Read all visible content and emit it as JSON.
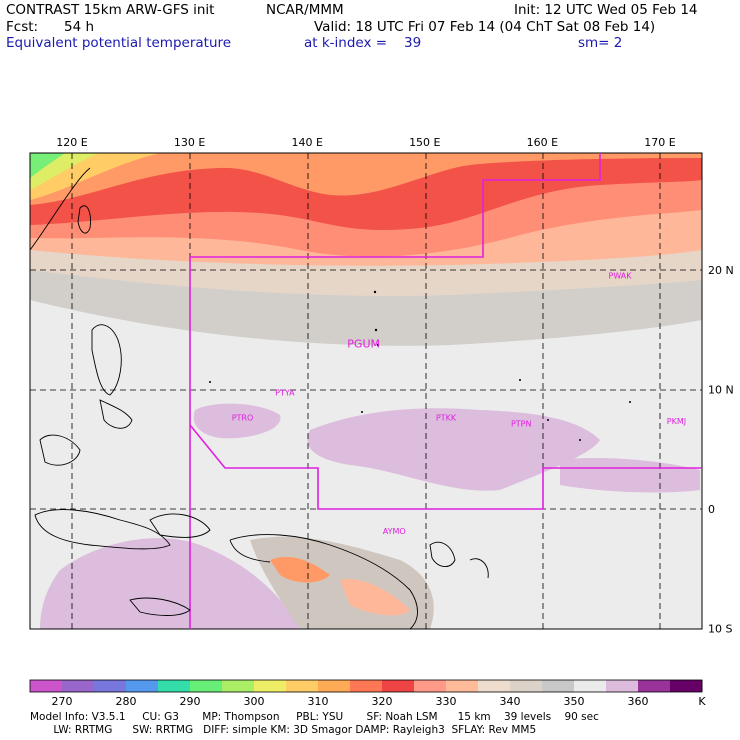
{
  "header": {
    "model": "CONTRAST 15km ARW-GFS init",
    "org": "NCAR/MMM",
    "init": "Init: 12 UTC Wed 05 Feb 14",
    "fcst_label": "Fcst:",
    "fcst_value": "54 h",
    "valid": "Valid: 18 UTC Fri 07 Feb 14 (04 ChT Sat 08 Feb 14)",
    "field": "Equivalent potential temperature",
    "level": "at k-index =",
    "level_value": "39",
    "smooth": "sm= 2"
  },
  "map": {
    "lon_labels": [
      "120 E",
      "130 E",
      "140 E",
      "150 E",
      "160 E",
      "170 E"
    ],
    "lon_values": [
      120,
      130,
      140,
      150,
      160,
      170
    ],
    "lat_labels": [
      "20 N",
      "10 N",
      "0",
      "10 S"
    ],
    "lat_values": [
      20,
      10,
      0,
      -10
    ],
    "stations": [
      {
        "id": "PWAK",
        "lon": 166.6,
        "lat": 19.3
      },
      {
        "id": "PGUM",
        "lon": 144.8,
        "lat": 13.5
      },
      {
        "id": "PTYA",
        "lon": 138.1,
        "lat": 9.5
      },
      {
        "id": "PTRO",
        "lon": 134.5,
        "lat": 7.4
      },
      {
        "id": "PTKK",
        "lon": 151.8,
        "lat": 7.4
      },
      {
        "id": "PTPN",
        "lon": 158.2,
        "lat": 6.9
      },
      {
        "id": "PKMJ",
        "lon": 171.4,
        "lat": 7.1
      },
      {
        "id": "AYMO",
        "lon": 147.4,
        "lat": -2.1
      }
    ]
  },
  "colorbar": {
    "labels": [
      "270",
      "280",
      "290",
      "300",
      "310",
      "320",
      "330",
      "340",
      "350",
      "360"
    ],
    "unit": "K",
    "colors": [
      "#cc55cc",
      "#9966cc",
      "#7777dd",
      "#5599ee",
      "#33ddaa",
      "#66ee77",
      "#aaee66",
      "#eeee66",
      "#ffcc66",
      "#ffaa55",
      "#ff7755",
      "#ee4444",
      "#ff9988",
      "#ffbb99",
      "#eeddcc",
      "#dcd2c8",
      "#c8c8c8",
      "#ebebeb",
      "#ddbbdd",
      "#993399",
      "#660066"
    ]
  },
  "footer": {
    "line1": "Model Info: V3.5.1     CU: G3       MP: Thompson     PBL: YSU       SF: Noah LSM      15 km    39 levels    90 sec",
    "line2": "       LW: RRTMG      SW: RRTMG   DIFF: simple KM: 3D Smagor DAMP: Rayleigh3  SFLAY: Rev MM5"
  }
}
